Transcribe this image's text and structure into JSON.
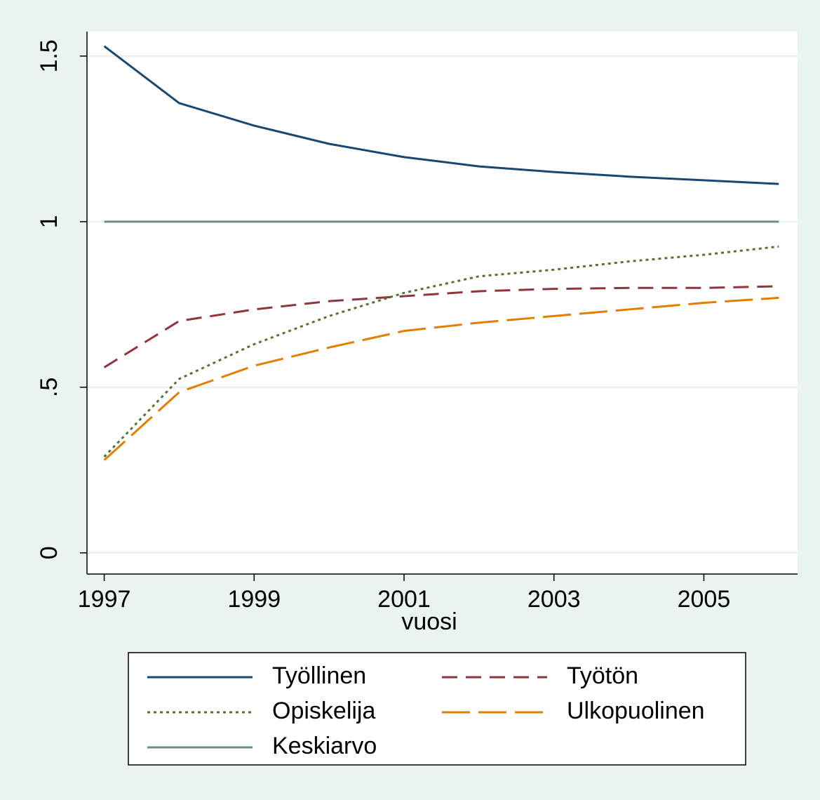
{
  "chart_data": {
    "type": "line",
    "x_label": "vuosi",
    "x": [
      1997,
      1998,
      1999,
      2000,
      2001,
      2002,
      2003,
      2004,
      2005,
      2006
    ],
    "series": [
      {
        "name": "Työllinen",
        "color": "#1a476f",
        "values": [
          1.53,
          1.358,
          1.29,
          1.235,
          1.195,
          1.167,
          1.15,
          1.136,
          1.125,
          1.114
        ]
      },
      {
        "name": "Työtön",
        "color": "#90353b",
        "values": [
          0.56,
          0.7,
          0.735,
          0.76,
          0.775,
          0.79,
          0.797,
          0.8,
          0.8,
          0.805
        ]
      },
      {
        "name": "Opiskelija",
        "color": "#55752f",
        "values": [
          0.29,
          0.525,
          0.63,
          0.715,
          0.785,
          0.835,
          0.855,
          0.88,
          0.9,
          0.925
        ]
      },
      {
        "name": "Ulkopuolinen",
        "color": "#e37e00",
        "values": [
          0.28,
          0.485,
          0.565,
          0.62,
          0.67,
          0.695,
          0.715,
          0.735,
          0.755,
          0.77
        ]
      },
      {
        "name": "Keskiarvo",
        "color": "#6e8e84",
        "values": [
          1,
          1,
          1,
          1,
          1,
          1,
          1,
          1,
          1,
          1
        ]
      }
    ],
    "xlim": [
      1996.77,
      2006.25
    ],
    "xticks": [
      1997,
      1999,
      2001,
      2003,
      2005
    ],
    "ylim": [
      -0.064,
      1.574
    ],
    "yticks": [
      0,
      {
        "value": 0.5,
        "label": ".5"
      },
      1,
      1.5
    ],
    "grid": true
  }
}
